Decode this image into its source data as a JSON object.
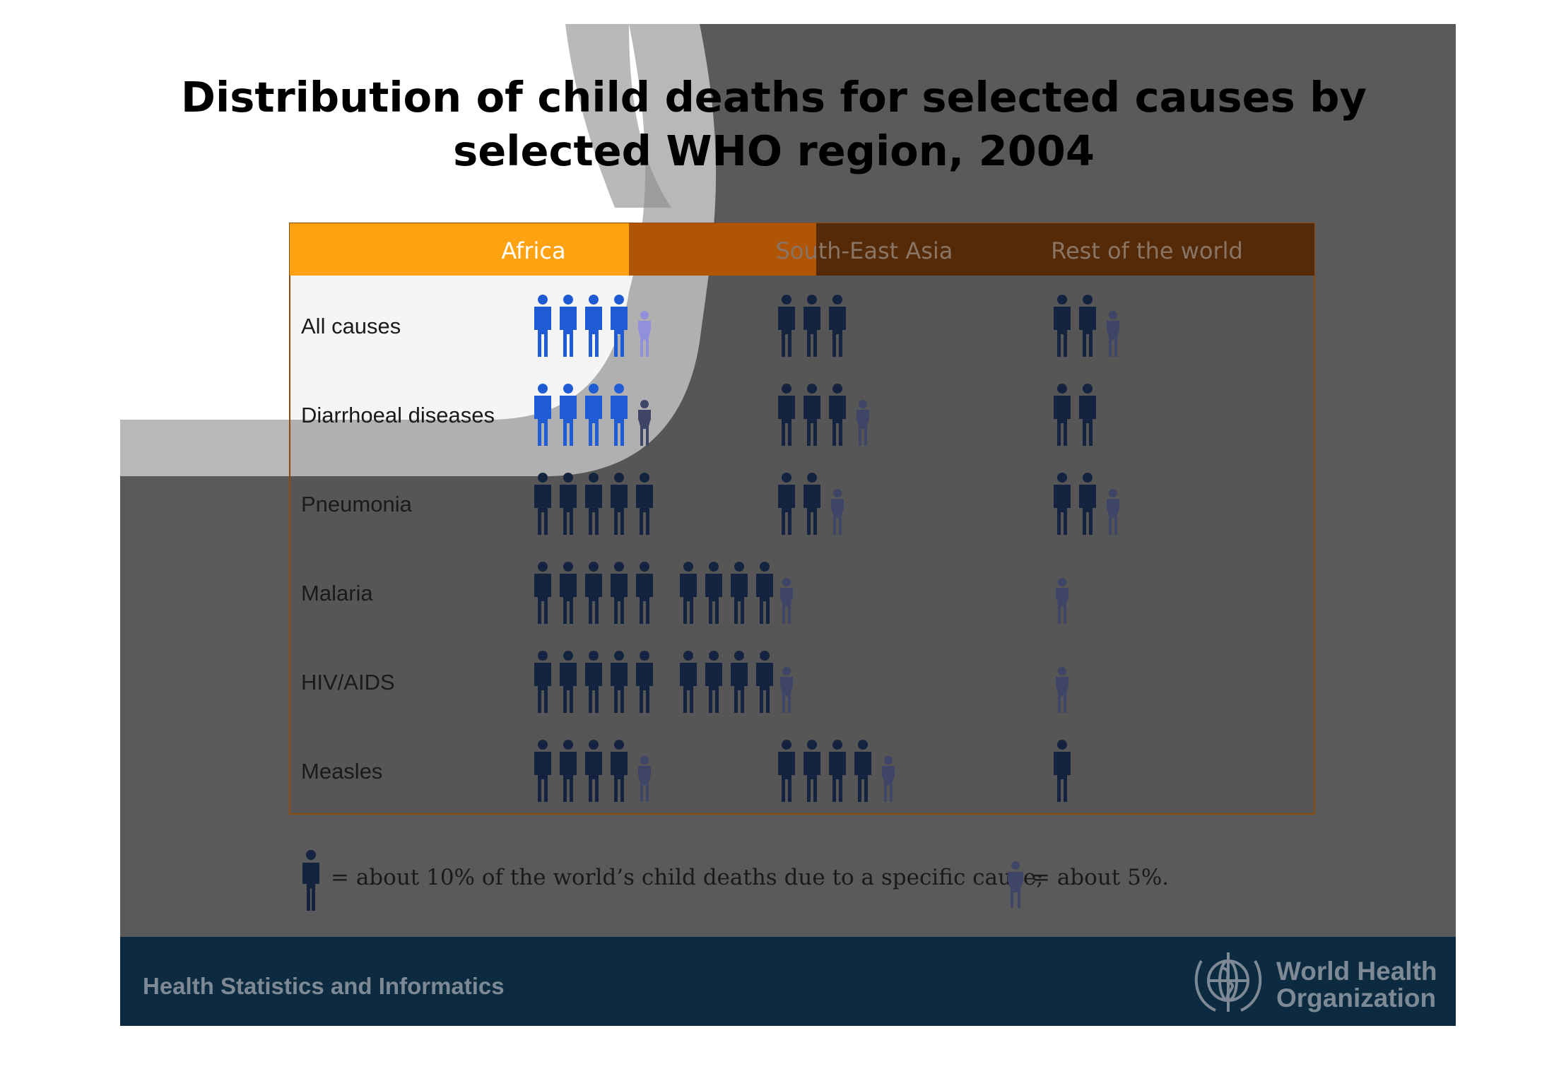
{
  "title_line1": "Distribution of child deaths for selected causes by",
  "title_line2": "selected WHO region, 2004",
  "chart_data": {
    "type": "table",
    "unit_note": "Each full figure = about 10% of the world's child deaths due to a specific cause; each small figure = about 5%.",
    "regions": [
      "Africa",
      "South-East Asia",
      "Rest of the world"
    ],
    "rows": [
      {
        "cause": "All causes",
        "values": [
          45,
          30,
          25
        ]
      },
      {
        "cause": "Diarrhoeal diseases",
        "values": [
          45,
          35,
          20
        ]
      },
      {
        "cause": "Pneumonia",
        "values": [
          50,
          25,
          25
        ]
      },
      {
        "cause": "Malaria",
        "values": [
          90,
          5,
          5
        ]
      },
      {
        "cause": "HIV/AIDS",
        "values": [
          90,
          5,
          5
        ]
      },
      {
        "cause": "Measles",
        "values": [
          45,
          45,
          10
        ]
      }
    ]
  },
  "legend": {
    "full_text": "= about 10% of the world’s child deaths due to a specific cause;",
    "half_text": "= about 5%."
  },
  "footer": {
    "left_text": "Health Statistics and Informatics",
    "org_line1": "World Health",
    "org_line2": "Organization"
  },
  "colors": {
    "header_orange": "#ffa211",
    "header_dark": "#552a08",
    "figure_bright": "#1f5bd4",
    "figure_dark": "#142340",
    "figure_half": "#3e4566",
    "figure_light": "#9090dd"
  }
}
